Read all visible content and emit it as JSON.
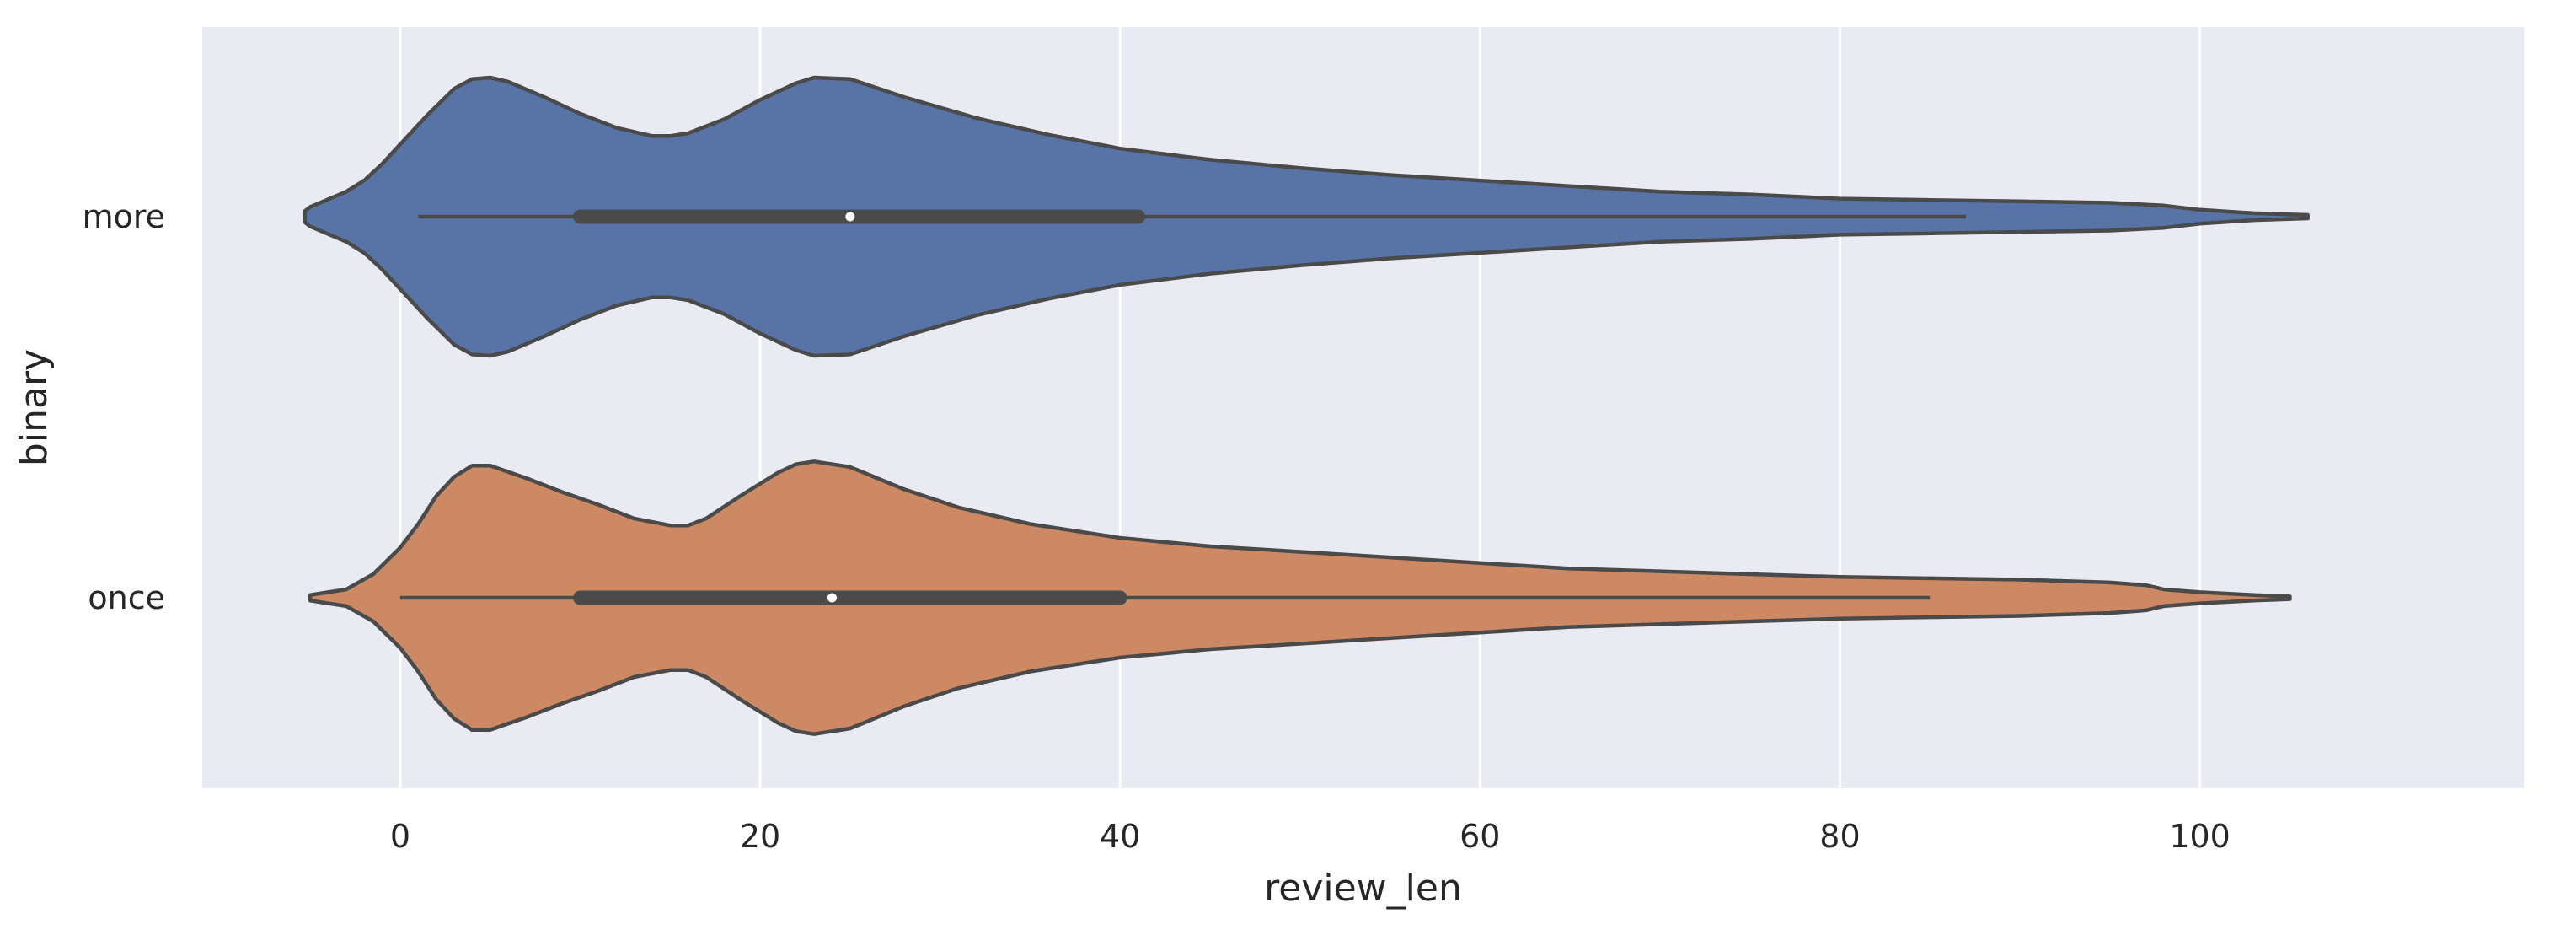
{
  "chart_data": {
    "type": "violin",
    "orientation": "horizontal",
    "xlabel": "review_len",
    "ylabel": "binary",
    "xlim": [
      -11,
      118
    ],
    "xticks": [
      0,
      20,
      40,
      60,
      80,
      100
    ],
    "grid": true,
    "background": "#EAEAF2",
    "gridColor": "#FFFFFF",
    "outlineColor": "#4A4A4A",
    "series": [
      {
        "name": "more",
        "color": "#5874A6",
        "box": {
          "min": 1,
          "q1": 10,
          "median": 25,
          "q3": 41,
          "max": 87
        },
        "profile": [
          [
            -5.3,
            0.04
          ],
          [
            -5,
            0.07
          ],
          [
            -3,
            0.18
          ],
          [
            -2,
            0.26
          ],
          [
            -1,
            0.38
          ],
          [
            0,
            0.52
          ],
          [
            1.5,
            0.73
          ],
          [
            3,
            0.92
          ],
          [
            4,
            0.99
          ],
          [
            5,
            1.0
          ],
          [
            6,
            0.97
          ],
          [
            8,
            0.86
          ],
          [
            10,
            0.74
          ],
          [
            12,
            0.64
          ],
          [
            14,
            0.58
          ],
          [
            15,
            0.58
          ],
          [
            16,
            0.6
          ],
          [
            18,
            0.7
          ],
          [
            20,
            0.84
          ],
          [
            22,
            0.96
          ],
          [
            23,
            1.0
          ],
          [
            25,
            0.99
          ],
          [
            28,
            0.86
          ],
          [
            32,
            0.71
          ],
          [
            36,
            0.59
          ],
          [
            40,
            0.49
          ],
          [
            45,
            0.41
          ],
          [
            50,
            0.35
          ],
          [
            55,
            0.3
          ],
          [
            60,
            0.26
          ],
          [
            65,
            0.22
          ],
          [
            70,
            0.18
          ],
          [
            75,
            0.16
          ],
          [
            80,
            0.13
          ],
          [
            85,
            0.12
          ],
          [
            90,
            0.11
          ],
          [
            95,
            0.1
          ],
          [
            98,
            0.08
          ],
          [
            100,
            0.05
          ],
          [
            103,
            0.025
          ],
          [
            106,
            0.012
          ]
        ]
      },
      {
        "name": "once",
        "color": "#CC8963",
        "box": {
          "min": 0,
          "q1": 10,
          "median": 24,
          "q3": 40,
          "max": 85
        },
        "profile": [
          [
            -5,
            0.02
          ],
          [
            -4,
            0.04
          ],
          [
            -3,
            0.06
          ],
          [
            -1.5,
            0.17
          ],
          [
            0,
            0.36
          ],
          [
            1,
            0.53
          ],
          [
            2,
            0.73
          ],
          [
            3,
            0.87
          ],
          [
            4,
            0.95
          ],
          [
            5,
            0.95
          ],
          [
            7,
            0.86
          ],
          [
            9,
            0.76
          ],
          [
            11,
            0.67
          ],
          [
            13,
            0.57
          ],
          [
            15,
            0.52
          ],
          [
            16,
            0.52
          ],
          [
            17,
            0.57
          ],
          [
            19,
            0.74
          ],
          [
            21,
            0.9
          ],
          [
            22,
            0.96
          ],
          [
            23,
            0.98
          ],
          [
            25,
            0.94
          ],
          [
            28,
            0.78
          ],
          [
            31,
            0.65
          ],
          [
            35,
            0.53
          ],
          [
            40,
            0.43
          ],
          [
            45,
            0.37
          ],
          [
            50,
            0.33
          ],
          [
            55,
            0.29
          ],
          [
            60,
            0.25
          ],
          [
            65,
            0.21
          ],
          [
            70,
            0.19
          ],
          [
            75,
            0.17
          ],
          [
            80,
            0.15
          ],
          [
            85,
            0.14
          ],
          [
            90,
            0.13
          ],
          [
            95,
            0.11
          ],
          [
            97,
            0.09
          ],
          [
            98,
            0.06
          ],
          [
            100,
            0.04
          ],
          [
            103,
            0.02
          ],
          [
            105,
            0.01
          ]
        ]
      }
    ]
  }
}
